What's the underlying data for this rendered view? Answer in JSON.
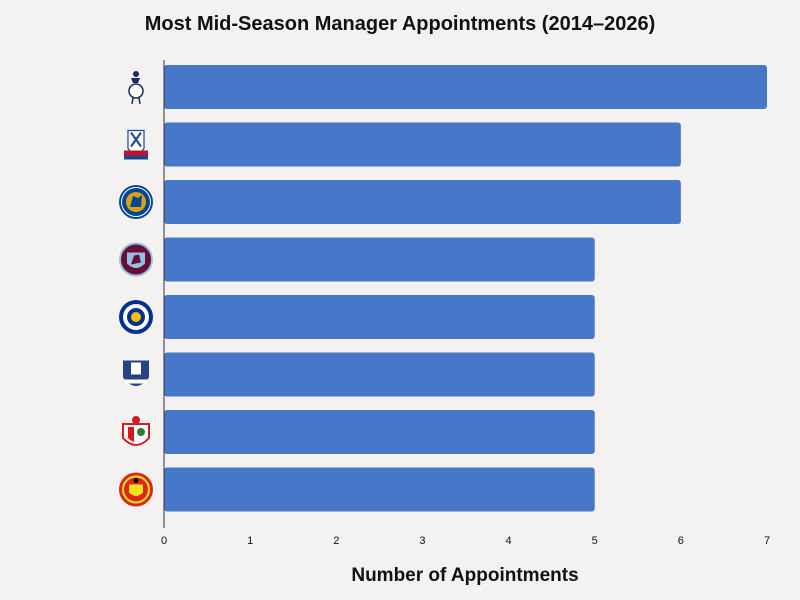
{
  "chart_data": {
    "type": "bar",
    "orientation": "horizontal",
    "title": "Most Mid-Season Manager Appointments (2014–2026)",
    "xlabel": "Number of Appointments",
    "ylabel": "",
    "xlim": [
      0,
      7
    ],
    "x_ticks": [
      "0",
      "1",
      "2",
      "3",
      "4",
      "5",
      "6",
      "7"
    ],
    "grid": false,
    "legend": "none",
    "bar_color": "#4677c8",
    "categories": [
      "tottenham-hotspur-crest",
      "crystal-palace-crest",
      "chelsea-crest",
      "aston-villa-crest",
      "leicester-city-crest",
      "everton-crest",
      "southampton-crest",
      "manchester-united-crest"
    ],
    "values": [
      7,
      6,
      6,
      5,
      5,
      5,
      5,
      5
    ]
  }
}
